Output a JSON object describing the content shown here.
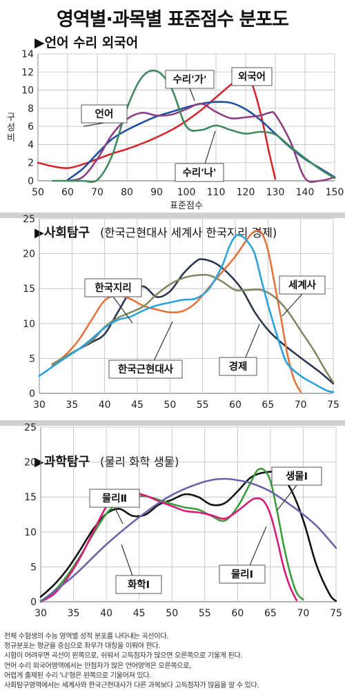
{
  "title": "영역별·과목별 표준점수 분포도",
  "footnote": [
    "전체 수험생의 수능 영역별 성적 분포를 나타내는 곡선이다.",
    "정규분포는 평균을 중심으로 좌우가 대칭을 이뤄야 한다.",
    "시험이 어려우면 곡선이 왼쪽으로, 쉬워서 고득점자가 많으면 오른쪽으로 기울게 된다.",
    "언어 수리 외국어영역에서는 만점자가 많은 언어영역은 오른쪽으로,",
    "어렵게 출제된 수리 '나'형은 왼쪽으로 기울어져 있다.",
    "사회탐구영역에서는 세계사와 한국근현대사가 다른 과목보다 고득점자가 많음을 알 수 있다."
  ],
  "colors": {
    "red": "#d7262a",
    "blue": "#1f4f9e",
    "green": "#3d8a5e",
    "purple": "#8e3c83",
    "orange": "#e4733b",
    "lightblue": "#2aa2dc",
    "navy": "#2a3650",
    "olive": "#848763",
    "magenta": "#da1a7a",
    "leaf": "#3a9e3a",
    "black": "#111111",
    "slate": "#6a63a8"
  },
  "chart_data": [
    {
      "type": "line",
      "title": "▶언어 수리 외국어",
      "ylabel": "구성비",
      "xlabel": "표준점수",
      "xlim": [
        50,
        150
      ],
      "ylim": [
        0,
        14
      ],
      "xticks": [
        50,
        60,
        70,
        80,
        90,
        100,
        110,
        120,
        130,
        140,
        150
      ],
      "yticks": [
        0,
        2,
        4,
        6,
        8,
        10,
        12,
        14
      ],
      "grid": true,
      "series": [
        {
          "name": "언어",
          "color": "red",
          "label_point": [
            128,
            12.3
          ],
          "x": [
            50,
            55,
            60,
            65,
            70,
            75,
            80,
            85,
            90,
            95,
            100,
            105,
            110,
            115,
            118,
            120,
            122,
            125,
            128,
            130
          ],
          "y": [
            2.0,
            1.6,
            1.4,
            1.8,
            2.4,
            3.0,
            3.5,
            4.1,
            4.8,
            5.6,
            6.6,
            7.8,
            9.2,
            10.6,
            11.3,
            11.5,
            10.8,
            7.5,
            3.0,
            0.2
          ]
        },
        {
          "name": "수리'가'",
          "color": "blue",
          "label_point": [
            111,
            12.4
          ],
          "x": [
            60,
            65,
            70,
            75,
            80,
            85,
            90,
            95,
            100,
            105,
            110,
            115,
            120,
            125,
            130,
            135,
            140,
            145,
            150
          ],
          "y": [
            0.1,
            1.3,
            3.0,
            4.6,
            5.6,
            6.4,
            7.1,
            7.6,
            8.1,
            8.5,
            8.7,
            8.6,
            7.9,
            6.7,
            5.2,
            3.7,
            2.4,
            1.4,
            0.4
          ]
        },
        {
          "name": "외국어",
          "color": "purple",
          "label_point": [
            64,
            9.2
          ],
          "x": [
            60,
            65,
            70,
            75,
            80,
            85,
            90,
            95,
            100,
            105,
            110,
            115,
            120,
            125,
            128,
            130,
            135,
            140,
            145,
            150
          ],
          "y": [
            0,
            0.4,
            2.4,
            5.1,
            6.8,
            7.5,
            7.2,
            7.3,
            7.9,
            8.5,
            7.6,
            6.9,
            7.0,
            7.2,
            7.5,
            7.3,
            4.4,
            0.3,
            0,
            0.4
          ]
        },
        {
          "name": "수리'나'",
          "color": "green",
          "label_point": [
            110,
            1.8
          ],
          "x": [
            55,
            60,
            65,
            70,
            75,
            80,
            85,
            90,
            95,
            100,
            105,
            110,
            115,
            120,
            125,
            130,
            135,
            140,
            145,
            150
          ],
          "y": [
            0,
            0,
            0,
            0.1,
            2.8,
            8.0,
            11.4,
            12.1,
            10.2,
            6.0,
            5.6,
            6.1,
            5.6,
            5.2,
            5.4,
            5.1,
            3.8,
            2.5,
            1.3,
            0.3
          ]
        }
      ]
    },
    {
      "type": "line",
      "title": "▶사회탐구",
      "subtitle": "(한국근현대사 세계사 한국지리 경제)",
      "xlim": [
        30,
        75
      ],
      "ylim": [
        0,
        25
      ],
      "xticks": [
        30,
        35,
        40,
        45,
        50,
        55,
        60,
        65,
        70,
        75
      ],
      "yticks": [
        0,
        5,
        10,
        15,
        20,
        25
      ],
      "grid": true,
      "series": [
        {
          "name": "한국지리",
          "color": "navy",
          "label_point": [
            43.5,
            20.5
          ],
          "x": [
            32,
            35,
            38,
            40,
            42,
            44,
            46,
            48,
            50,
            52,
            54,
            55,
            57,
            59,
            61,
            63,
            65,
            67,
            70,
            73,
            75
          ],
          "y": [
            4.0,
            5.8,
            7.3,
            8.5,
            11.6,
            14.6,
            15.3,
            13.8,
            14.6,
            17.1,
            18.9,
            19.2,
            18.6,
            17.1,
            14.9,
            11.6,
            9.1,
            7.3,
            5.1,
            3.0,
            1.4
          ]
        },
        {
          "name": "세계사",
          "color": "orange",
          "label_point": [
            70.5,
            21.5
          ],
          "x": [
            32,
            34,
            36,
            38,
            40,
            42,
            44,
            46,
            48,
            50,
            52,
            54,
            56,
            58,
            60,
            62,
            63,
            64,
            65,
            66,
            67,
            68,
            69,
            70
          ],
          "y": [
            4.0,
            5.5,
            7.6,
            10.5,
            13.3,
            14.0,
            13.5,
            12.5,
            12.0,
            11.6,
            11.8,
            13.0,
            15.2,
            17.4,
            19.6,
            22.3,
            23.2,
            23.0,
            20.5,
            15.8,
            10.8,
            5.5,
            2.0,
            0.2
          ]
        },
        {
          "name": "한국근현대사",
          "color": "olive",
          "label_point": [
            46,
            7.0
          ],
          "x": [
            32,
            35,
            38,
            40,
            42,
            44,
            46,
            48,
            50,
            52,
            54,
            56,
            58,
            60,
            62,
            64,
            66,
            68,
            70,
            72,
            74,
            75
          ],
          "y": [
            4.2,
            5.8,
            7.5,
            9.5,
            10.8,
            11.6,
            12.5,
            14.2,
            15.6,
            16.5,
            16.9,
            16.9,
            16.0,
            14.8,
            14.8,
            14.8,
            13.8,
            11.8,
            9.0,
            6.2,
            3.0,
            1.6
          ]
        },
        {
          "name": "경제",
          "color": "lightblue",
          "label_point": [
            60,
            7.5
          ],
          "x": [
            30,
            32,
            34,
            36,
            38,
            40,
            42,
            44,
            46,
            48,
            50,
            52,
            54,
            56,
            58,
            59,
            60,
            61,
            62,
            63,
            64,
            65,
            66,
            67,
            68,
            70,
            72,
            74,
            75
          ],
          "y": [
            2.5,
            3.8,
            5.1,
            6.3,
            7.8,
            9.4,
            10.5,
            11.0,
            11.9,
            12.6,
            13.0,
            13.4,
            13.6,
            15.0,
            18.3,
            20.8,
            22.5,
            22.5,
            21.6,
            19.9,
            16.2,
            12.7,
            9.5,
            6.5,
            4.2,
            2.5,
            1.4,
            0.4,
            0.2
          ]
        }
      ]
    },
    {
      "type": "line",
      "title": "▶과학탐구",
      "subtitle": "(물리 화학 생물)",
      "xlim": [
        30,
        75
      ],
      "ylim": [
        0,
        25
      ],
      "xticks": [
        30,
        35,
        40,
        45,
        50,
        55,
        60,
        65,
        70,
        75
      ],
      "yticks": [
        0,
        5,
        10,
        15,
        20,
        25
      ],
      "grid": true,
      "series": [
        {
          "name": "생물Ⅰ",
          "color": "black",
          "label_point": [
            67.4,
            22.2
          ],
          "x": [
            30,
            32,
            34,
            36,
            38,
            40,
            42,
            44,
            46,
            48,
            50,
            52,
            54,
            56,
            58,
            60,
            62,
            64,
            66,
            68,
            70,
            72,
            74,
            75
          ],
          "y": [
            0.7,
            2.4,
            4.6,
            7.4,
            10.4,
            12.6,
            13.3,
            12.3,
            12.5,
            13.9,
            14.6,
            15.4,
            15.0,
            13.9,
            14.1,
            15.8,
            17.8,
            18.5,
            18.4,
            16.3,
            11.7,
            5.3,
            1.1,
            0.1
          ]
        },
        {
          "name": "물리Ⅱ",
          "color": "leaf",
          "label_point": [
            42.0,
            19.2
          ],
          "x": [
            30,
            32,
            34,
            36,
            38,
            40,
            42,
            44,
            46,
            48,
            50,
            52,
            54,
            56,
            58,
            60,
            62,
            63,
            64,
            65,
            66,
            67,
            68,
            69,
            70
          ],
          "y": [
            0.1,
            1.5,
            3.7,
            6.5,
            9.7,
            12.6,
            14.3,
            15.0,
            15.1,
            14.6,
            14.0,
            13.5,
            13.2,
            12.3,
            11.6,
            13.6,
            17.1,
            18.8,
            18.9,
            17.3,
            13.1,
            8.2,
            4.1,
            1.3,
            0.3
          ]
        },
        {
          "name": "물리Ⅰ",
          "color": "magenta",
          "label_point": [
            62.0,
            5.0
          ],
          "x": [
            30,
            32,
            34,
            36,
            38,
            40,
            42,
            43,
            44,
            46,
            48,
            50,
            52,
            54,
            56,
            58,
            60,
            62,
            63,
            64,
            65,
            66,
            67,
            68,
            69
          ],
          "y": [
            0,
            1.1,
            3.3,
            6.3,
            10.0,
            13.6,
            15.5,
            15.8,
            15.7,
            15.2,
            14.4,
            13.7,
            13.0,
            12.8,
            12.4,
            11.9,
            13.0,
            14.5,
            14.8,
            14.4,
            12.5,
            9.0,
            5.0,
            2.1,
            0.2
          ]
        },
        {
          "name": "화학Ⅰ",
          "color": "slate",
          "label_point": [
            46.0,
            3.6
          ],
          "x": [
            30,
            35,
            40,
            45,
            50,
            55,
            58,
            60,
            62,
            65,
            68,
            70,
            72,
            74,
            75
          ],
          "y": [
            0,
            3.7,
            8.2,
            12.1,
            15.3,
            17.2,
            17.6,
            17.4,
            17.0,
            15.8,
            13.9,
            12.5,
            10.9,
            8.8,
            7.7
          ]
        }
      ]
    }
  ]
}
